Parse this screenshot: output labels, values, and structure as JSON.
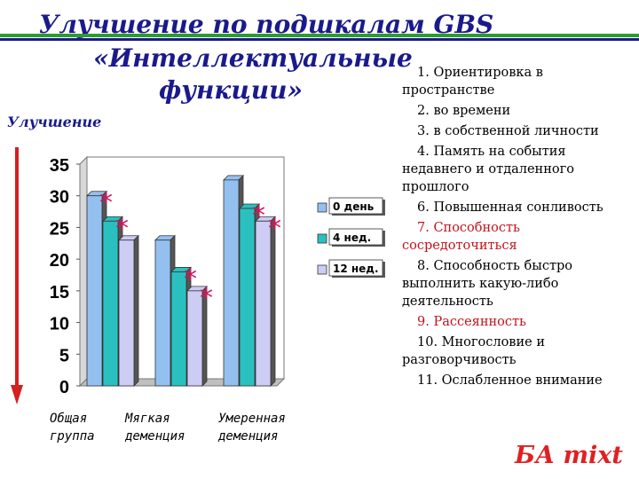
{
  "title": {
    "line1": "Улучшение по подшкалам GBS",
    "line2": "«Интеллектуальные",
    "line3": "функции»"
  },
  "improvement_label": "Улучшение",
  "criteria": [
    {
      "text": "1. Ориентировка в пространстве",
      "highlight": false
    },
    {
      "text": "2. во времени",
      "highlight": false
    },
    {
      "text": "3. в собственной личности",
      "highlight": false
    },
    {
      "text": "4. Память на события недавнего и отдаленного прошлого",
      "highlight": false
    },
    {
      "text": "6. Повышенная сонливость",
      "highlight": false
    },
    {
      "text": "7. Способность сосредоточиться",
      "highlight": true
    },
    {
      "text": "8. Способность быстро выполнить какую-либо деятельность",
      "highlight": false
    },
    {
      "text": "9. Рассеянность",
      "highlight": true
    },
    {
      "text": "10. Многословие и разговорчивость",
      "highlight": false
    },
    {
      "text": "11. Ослабленное внимание",
      "highlight": false
    }
  ],
  "footer_tag": "БА mixt",
  "colors": {
    "title": "#1a1a8c",
    "accent_green": "#2e9b2e",
    "highlight_red": "#c0141c",
    "asterisk": "#d4145a",
    "arrow": "#d42020"
  },
  "chart_data": {
    "type": "bar",
    "categories": [
      {
        "line1": "Общая",
        "line2": "группа"
      },
      {
        "line1": "Мягкая",
        "line2": "деменция"
      },
      {
        "line1": "Умеренная",
        "line2": "деменция"
      }
    ],
    "series": [
      {
        "name": "0 день",
        "color": "#93c0ef",
        "values": [
          30,
          23,
          32.5
        ]
      },
      {
        "name": "4 нед.",
        "color": "#2bc0c0",
        "values": [
          26,
          18,
          28
        ]
      },
      {
        "name": "12 нед.",
        "color": "#ccccf5",
        "values": [
          23,
          15,
          26
        ]
      }
    ],
    "significance": [
      {
        "category": 0,
        "series": 0,
        "mark": "*"
      },
      {
        "category": 0,
        "series": 1,
        "mark": "*"
      },
      {
        "category": 1,
        "series": 1,
        "mark": "*"
      },
      {
        "category": 1,
        "series": 2,
        "mark": "*"
      },
      {
        "category": 2,
        "series": 1,
        "mark": "*"
      },
      {
        "category": 2,
        "series": 2,
        "mark": "*"
      }
    ],
    "ylim": [
      0,
      35
    ],
    "yticks": [
      0,
      5,
      10,
      15,
      20,
      25,
      30,
      35
    ],
    "grid": false,
    "legend_position": "right"
  }
}
